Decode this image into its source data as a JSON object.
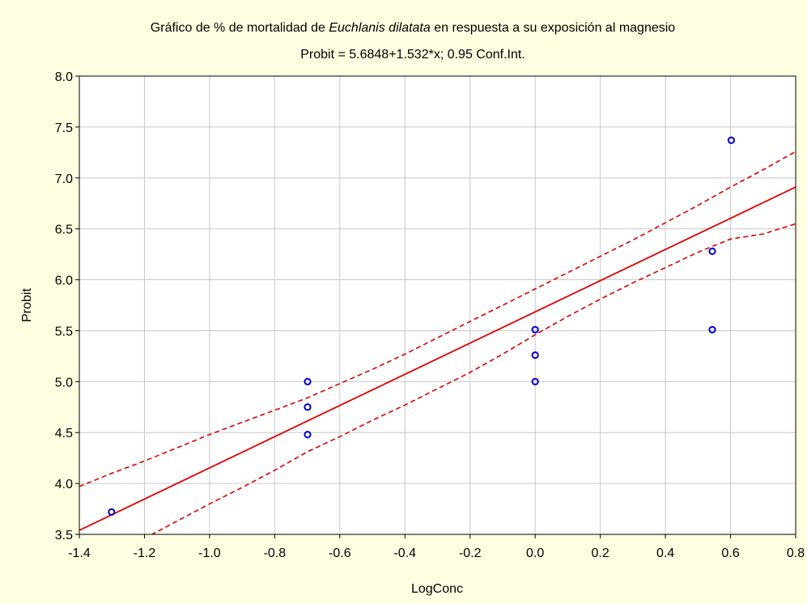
{
  "chart_data": {
    "type": "scatter",
    "title_parts": [
      {
        "text": "Gráfico de % de mortalidad de ",
        "italic": false
      },
      {
        "text": "Euchlanis dilatata",
        "italic": true
      },
      {
        "text": " en respuesta a su exposición al magnesio",
        "italic": false
      }
    ],
    "subtitle": "Probit = 5.6848+1.532*x; 0.95 Conf.Int.",
    "xlabel": "LogConc",
    "ylabel": "Probit",
    "xlim": [
      -1.4,
      0.8
    ],
    "ylim": [
      3.5,
      8.0
    ],
    "x_ticks": [
      -1.4,
      -1.2,
      -1.0,
      -0.8,
      -0.6,
      -0.4,
      -0.2,
      0.0,
      0.2,
      0.4,
      0.6,
      0.8
    ],
    "x_tick_labels": [
      "-1.4",
      "-1.2",
      "-1.0",
      "-0.8",
      "-0.6",
      "-0.4",
      "-0.2",
      "0.0",
      "0.2",
      "0.4",
      "0.6",
      "0.8"
    ],
    "y_ticks": [
      3.5,
      4.0,
      4.5,
      5.0,
      5.5,
      6.0,
      6.5,
      7.0,
      7.5,
      8.0
    ],
    "y_tick_labels": [
      "3.5",
      "4.0",
      "4.5",
      "5.0",
      "5.5",
      "6.0",
      "6.5",
      "7.0",
      "7.5",
      "8.0"
    ],
    "grid": true,
    "points": [
      {
        "x": -1.301,
        "y": 3.72
      },
      {
        "x": -0.699,
        "y": 5.0
      },
      {
        "x": -0.699,
        "y": 4.75
      },
      {
        "x": -0.699,
        "y": 4.48
      },
      {
        "x": 0.0,
        "y": 5.51
      },
      {
        "x": 0.0,
        "y": 5.26
      },
      {
        "x": 0.0,
        "y": 5.0
      },
      {
        "x": 0.544,
        "y": 6.28
      },
      {
        "x": 0.544,
        "y": 5.51
      },
      {
        "x": 0.602,
        "y": 7.37
      }
    ],
    "fit": {
      "intercept": 5.6848,
      "slope": 1.532
    },
    "conf_upper": [
      {
        "x": -1.4,
        "y": 3.97
      },
      {
        "x": -1.3,
        "y": 4.1
      },
      {
        "x": -1.2,
        "y": 4.22
      },
      {
        "x": -1.1,
        "y": 4.35
      },
      {
        "x": -1.0,
        "y": 4.48
      },
      {
        "x": -0.9,
        "y": 4.6
      },
      {
        "x": -0.8,
        "y": 4.72
      },
      {
        "x": -0.7,
        "y": 4.84
      },
      {
        "x": -0.6,
        "y": 4.98
      },
      {
        "x": -0.5,
        "y": 5.12
      },
      {
        "x": -0.4,
        "y": 5.27
      },
      {
        "x": -0.3,
        "y": 5.43
      },
      {
        "x": -0.2,
        "y": 5.59
      },
      {
        "x": -0.1,
        "y": 5.75
      },
      {
        "x": 0.0,
        "y": 5.91
      },
      {
        "x": 0.1,
        "y": 6.07
      },
      {
        "x": 0.2,
        "y": 6.23
      },
      {
        "x": 0.3,
        "y": 6.39
      },
      {
        "x": 0.4,
        "y": 6.56
      },
      {
        "x": 0.5,
        "y": 6.73
      },
      {
        "x": 0.6,
        "y": 6.91
      },
      {
        "x": 0.7,
        "y": 7.08
      },
      {
        "x": 0.8,
        "y": 7.26
      }
    ],
    "conf_lower": [
      {
        "x": -1.4,
        "y": 3.13
      },
      {
        "x": -1.3,
        "y": 3.3
      },
      {
        "x": -1.2,
        "y": 3.46
      },
      {
        "x": -1.1,
        "y": 3.63
      },
      {
        "x": -1.0,
        "y": 3.8
      },
      {
        "x": -0.9,
        "y": 3.96
      },
      {
        "x": -0.8,
        "y": 4.13
      },
      {
        "x": -0.7,
        "y": 4.31
      },
      {
        "x": -0.6,
        "y": 4.46
      },
      {
        "x": -0.5,
        "y": 4.62
      },
      {
        "x": -0.4,
        "y": 4.77
      },
      {
        "x": -0.3,
        "y": 4.93
      },
      {
        "x": -0.2,
        "y": 5.09
      },
      {
        "x": -0.1,
        "y": 5.27
      },
      {
        "x": 0.0,
        "y": 5.46
      },
      {
        "x": 0.1,
        "y": 5.64
      },
      {
        "x": 0.2,
        "y": 5.81
      },
      {
        "x": 0.3,
        "y": 5.97
      },
      {
        "x": 0.4,
        "y": 6.12
      },
      {
        "x": 0.5,
        "y": 6.27
      },
      {
        "x": 0.6,
        "y": 6.4
      },
      {
        "x": 0.7,
        "y": 6.45
      },
      {
        "x": 0.8,
        "y": 6.55
      }
    ],
    "colors": {
      "background": "#FFFFE1",
      "plot_background": "#FFFFFF",
      "points": "#0000CC",
      "fit_line": "#E00000",
      "grid": "#C8C8C8",
      "axis": "#000000"
    }
  }
}
